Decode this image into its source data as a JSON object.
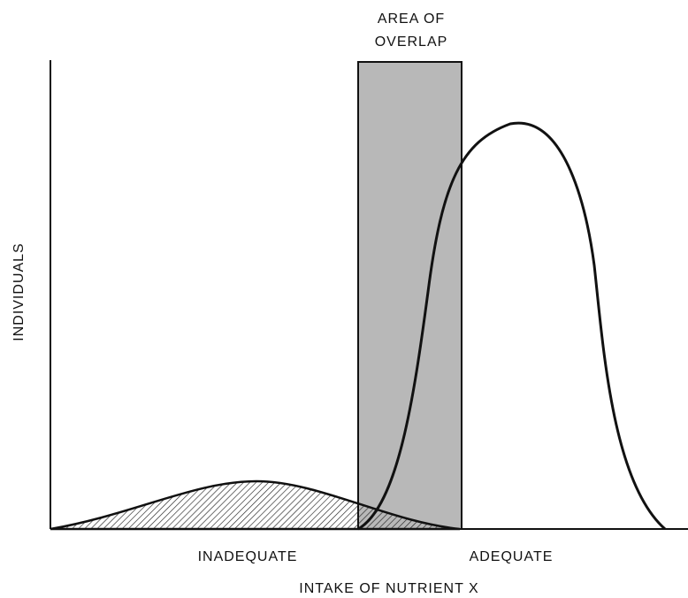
{
  "annotation": [
    "AREA OF",
    "OVERLAP"
  ],
  "y_axis_label": "INDIVIDUALS",
  "regions": [
    "INADEQUATE",
    "ADEQUATE"
  ],
  "x_axis_label": "INTAKE OF NUTRIENT X"
}
